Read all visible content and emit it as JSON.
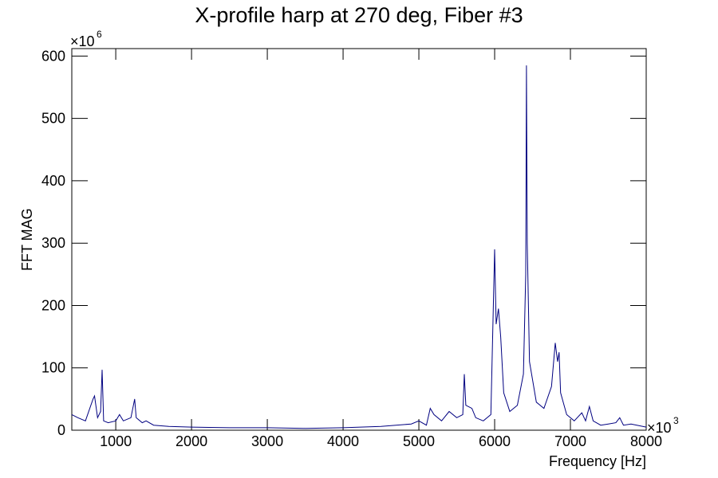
{
  "chart_data": {
    "type": "line",
    "title": "X-profile harp at 270 deg, Fiber #3",
    "x_label": "Frequency [Hz]",
    "y_label": "FFT MAG",
    "x_scale_base": "×10",
    "x_scale_exponent": 3,
    "y_scale_base": "×10",
    "y_scale_exponent": 6,
    "color": "#000080",
    "xlim": [
      420,
      8000
    ],
    "ylim": [
      0,
      612
    ],
    "xticks": [
      1000,
      2000,
      3000,
      4000,
      5000,
      6000,
      7000,
      8000
    ],
    "yticks": [
      0,
      100,
      200,
      300,
      400,
      500,
      600
    ],
    "x": [
      420,
      500,
      600,
      700,
      720,
      760,
      800,
      820,
      840,
      900,
      1000,
      1050,
      1100,
      1200,
      1250,
      1270,
      1350,
      1400,
      1500,
      1700,
      2000,
      2500,
      3000,
      3500,
      4000,
      4500,
      4900,
      5000,
      5100,
      5150,
      5200,
      5300,
      5400,
      5500,
      5580,
      5600,
      5620,
      5700,
      5750,
      5850,
      5950,
      6000,
      6020,
      6050,
      6080,
      6120,
      6200,
      6300,
      6380,
      6410,
      6420,
      6430,
      6460,
      6550,
      6650,
      6750,
      6800,
      6830,
      6850,
      6870,
      6950,
      7050,
      7150,
      7200,
      7250,
      7300,
      7400,
      7500,
      7600,
      7650,
      7700,
      7800,
      8000
    ],
    "values": [
      25,
      20,
      15,
      50,
      55,
      20,
      30,
      97,
      15,
      12,
      15,
      25,
      15,
      20,
      50,
      20,
      12,
      15,
      8,
      6,
      5,
      4,
      4,
      3,
      4,
      6,
      10,
      15,
      8,
      35,
      25,
      15,
      30,
      20,
      25,
      90,
      40,
      35,
      20,
      15,
      25,
      290,
      170,
      195,
      150,
      60,
      30,
      40,
      90,
      250,
      585,
      300,
      110,
      45,
      35,
      70,
      140,
      110,
      125,
      60,
      25,
      15,
      28,
      15,
      38,
      15,
      8,
      10,
      12,
      20,
      8,
      10,
      5
    ]
  }
}
